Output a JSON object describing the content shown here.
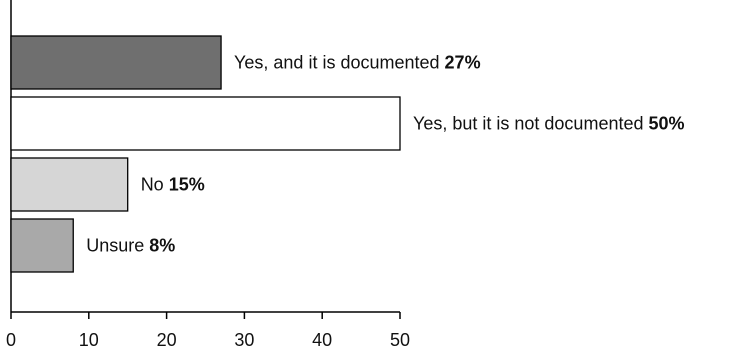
{
  "chart_data": {
    "type": "bar",
    "orientation": "horizontal",
    "categories": [
      "Yes, and it is documented",
      "Yes, but it is not documented",
      "No",
      "Unsure"
    ],
    "values": [
      27,
      50,
      15,
      8
    ],
    "value_labels": [
      "27%",
      "50%",
      "15%",
      "8%"
    ],
    "bar_colors": [
      "#6f6f6f",
      "#ffffff",
      "#d6d6d6",
      "#a9a9a9"
    ],
    "xlim": [
      0,
      50
    ],
    "xticks": [
      0,
      10,
      20,
      30,
      40,
      50
    ],
    "grid": false,
    "legend": "none"
  }
}
